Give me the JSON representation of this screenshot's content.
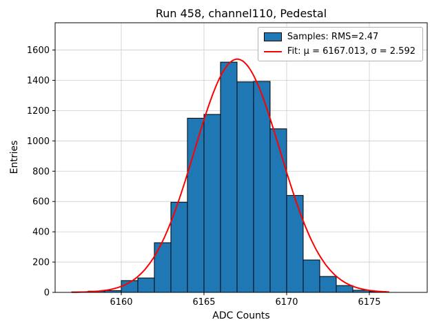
{
  "chart_data": {
    "type": "bar",
    "subtype": "histogram-with-gaussian-fit",
    "title": "Run 458, channel110, Pedestal",
    "xlabel": "ADC Counts",
    "ylabel": "Entries",
    "xlim": [
      6156,
      6178.5
    ],
    "ylim": [
      0,
      1780
    ],
    "xticks": [
      6160,
      6165,
      6170,
      6175
    ],
    "yticks": [
      0,
      200,
      400,
      600,
      800,
      1000,
      1200,
      1400,
      1600
    ],
    "grid": true,
    "grid_color": "#cccccc",
    "legend_position": "upper right",
    "bar_color": "#1f77b4",
    "bar_edge_color": "#000000",
    "fit_color": "#ff0000",
    "series": [
      {
        "name": "Samples: RMS=2.47",
        "kind": "histogram",
        "bin_width": 1,
        "bin_left_edges": [
          6157,
          6158,
          6159,
          6160,
          6161,
          6162,
          6163,
          6164,
          6165,
          6166,
          6167,
          6168,
          6169,
          6170,
          6171,
          6172,
          6173,
          6174,
          6175
        ],
        "counts": [
          3,
          8,
          12,
          78,
          95,
          328,
          595,
          1150,
          1175,
          1520,
          1390,
          1393,
          1080,
          640,
          214,
          105,
          45,
          14,
          6
        ]
      },
      {
        "name": "Fit: μ = 6167.013, σ = 2.592",
        "kind": "gaussian",
        "mu": 6167.013,
        "sigma": 2.592,
        "amplitude": 1540,
        "x_start": 6157,
        "x_end": 6176.2
      }
    ]
  },
  "legend": {
    "samples_label": "Samples: RMS=2.47",
    "fit_label": "Fit: μ = 6167.013, σ = 2.592"
  }
}
